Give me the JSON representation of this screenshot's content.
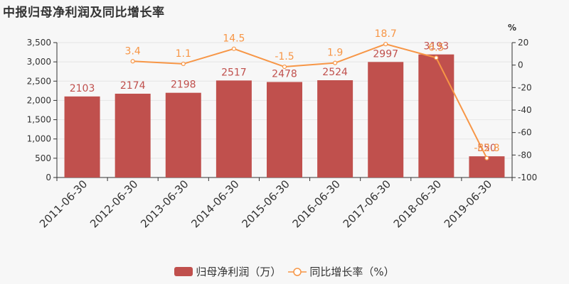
{
  "title": "中报归母净利润及同比增长率",
  "colors": {
    "bar": "#c0504d",
    "line": "#f79646",
    "axis": "#333333",
    "grid": "#e6e6e6"
  },
  "legend": {
    "bar_label": "归母净利润（万）",
    "line_label": "同比增长率（%）"
  },
  "chart_data": {
    "type": "bar",
    "categories": [
      "2011-06-30",
      "2012-06-30",
      "2013-06-30",
      "2014-06-30",
      "2015-06-30",
      "2016-06-30",
      "2017-06-30",
      "2018-06-30",
      "2019-06-30"
    ],
    "series": [
      {
        "name": "归母净利润（万）",
        "type": "bar",
        "axis": "left",
        "values": [
          2103,
          2174,
          2198,
          2517,
          2478,
          2524,
          2997,
          3193,
          550
        ],
        "labels": [
          "2103",
          "2174",
          "2198",
          "2517",
          "2478",
          "2524",
          "2997",
          "3193",
          "550"
        ]
      },
      {
        "name": "同比增长率（%）",
        "type": "line",
        "axis": "right",
        "values": [
          null,
          3.4,
          1.1,
          14.5,
          -1.5,
          1.9,
          18.7,
          6.5,
          -82.8
        ],
        "labels": [
          "",
          "3.4",
          "1.1",
          "14.5",
          "-1.5",
          "1.9",
          "18.7",
          "6.5",
          "-82.8"
        ]
      }
    ],
    "y_left": {
      "min": 0,
      "max": 3500,
      "ticks": [
        "0",
        "500",
        "1,000",
        "1,500",
        "2,000",
        "2,500",
        "3,000",
        "3,500"
      ]
    },
    "y_right": {
      "min": -100,
      "max": 20,
      "ticks": [
        "-100",
        "-80",
        "-60",
        "-40",
        "-20",
        "0",
        "20"
      ],
      "unit": "%"
    },
    "grid": true,
    "legend_position": "bottom"
  }
}
